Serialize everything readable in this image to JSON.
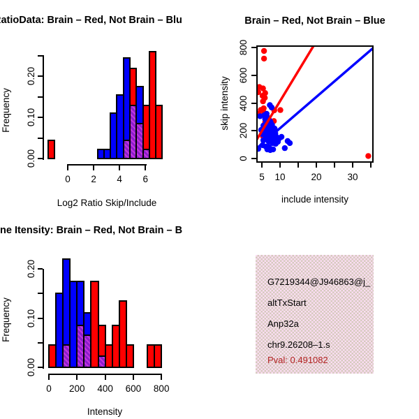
{
  "colors": {
    "red": "#FF0000",
    "blue": "#0000FF",
    "overlap_base": "#8A1ECC",
    "overlap_stripe": "#C433DD",
    "axis_black": "#000000",
    "info_bg_pink": "#FBDDF3",
    "info_bg_dot": "#D6CABE",
    "pval_red": "#B22222"
  },
  "chart_data": [
    {
      "id": "hist_ratio",
      "type": "histogram",
      "title": "RatioData: Brain – Red, Not Brain – Blu",
      "xlabel": "Log2 Ratio Skip/Include",
      "ylabel": "Frequency",
      "xlim": [
        -1.8,
        7.3
      ],
      "ylim": [
        0,
        0.25
      ],
      "x_ticks": [
        {
          "v": 0,
          "l": "0"
        },
        {
          "v": 2,
          "l": "2"
        },
        {
          "v": 4,
          "l": "4"
        },
        {
          "v": 6,
          "l": "6"
        }
      ],
      "y_ticks": [
        {
          "v": 0,
          "l": "0.00"
        },
        {
          "v": 0.05,
          "l": ""
        },
        {
          "v": 0.1,
          "l": "0.10"
        },
        {
          "v": 0.15,
          "l": ""
        },
        {
          "v": 0.2,
          "l": "0.20"
        },
        {
          "v": 0.25,
          "l": ""
        }
      ],
      "series": [
        {
          "name": "not-brain-blue",
          "color": "blue",
          "bars": [
            [
              2.3,
              2.8,
              0.022
            ],
            [
              2.8,
              3.3,
              0.022
            ],
            [
              3.3,
              3.8,
              0.11
            ],
            [
              3.8,
              4.3,
              0.155
            ],
            [
              4.3,
              4.8,
              0.245
            ],
            [
              4.8,
              5.3,
              0.13
            ],
            [
              5.3,
              5.8,
              0.175
            ],
            [
              5.8,
              6.3,
              0.022
            ]
          ]
        },
        {
          "name": "brain-red",
          "color": "red",
          "bars": [
            [
              -1.5,
              -1.0,
              0.045
            ],
            [
              4.3,
              4.8,
              0.045
            ],
            [
              4.8,
              5.3,
              0.22
            ],
            [
              5.3,
              5.8,
              0.085
            ],
            [
              5.8,
              6.3,
              0.13
            ],
            [
              6.3,
              6.8,
              0.26
            ],
            [
              6.8,
              7.3,
              0.13
            ]
          ]
        },
        {
          "name": "overlap-purple-hatch",
          "color": "overlap",
          "bars": [
            [
              4.3,
              4.8,
              0.045
            ],
            [
              4.8,
              5.3,
              0.13
            ],
            [
              5.3,
              5.8,
              0.085
            ],
            [
              5.8,
              6.3,
              0.022
            ]
          ]
        }
      ]
    },
    {
      "id": "scatter_intensity",
      "type": "scatter",
      "title": "Brain – Red, Not Brain – Blue",
      "xlabel": "include intensity",
      "ylabel": "skip intensity",
      "xlim": [
        3.5,
        35.8
      ],
      "ylim": [
        0,
        800
      ],
      "x_ticks": [
        {
          "v": 5,
          "l": "5"
        },
        {
          "v": 10,
          "l": "10"
        },
        {
          "v": 15,
          "l": ""
        },
        {
          "v": 20,
          "l": "20"
        },
        {
          "v": 25,
          "l": ""
        },
        {
          "v": 30,
          "l": "30"
        },
        {
          "v": 35,
          "l": ""
        }
      ],
      "y_ticks": [
        {
          "v": 0,
          "l": "0"
        },
        {
          "v": 200,
          "l": "200"
        },
        {
          "v": 400,
          "l": "400"
        },
        {
          "v": 600,
          "l": "600"
        },
        {
          "v": 800,
          "l": "800"
        }
      ],
      "series": [
        {
          "name": "brain-red-points",
          "color": "red",
          "points": [
            [
              5.6,
              775
            ],
            [
              5.6,
              720
            ],
            [
              4.3,
              515
            ],
            [
              5.3,
              505
            ],
            [
              4.0,
              478
            ],
            [
              5.9,
              472
            ],
            [
              5.2,
              452
            ],
            [
              5.8,
              437
            ],
            [
              5.3,
              412
            ],
            [
              4.7,
              350
            ],
            [
              5.5,
              362
            ],
            [
              4.1,
              322
            ],
            [
              5.7,
              327
            ],
            [
              8.4,
              347
            ],
            [
              10.1,
              349
            ],
            [
              7.0,
              277
            ],
            [
              8.3,
              270
            ],
            [
              5.9,
              262
            ],
            [
              7.5,
              240
            ],
            [
              5.3,
              160
            ],
            [
              6.4,
              302
            ],
            [
              34.3,
              18
            ]
          ]
        },
        {
          "name": "not-brain-blue-points",
          "color": "blue",
          "points": [
            [
              7.2,
              385
            ],
            [
              7.7,
              368
            ],
            [
              6.3,
              322
            ],
            [
              5.7,
              312
            ],
            [
              4.5,
              305
            ],
            [
              6.6,
              292
            ],
            [
              5.9,
              285
            ],
            [
              7.0,
              278
            ],
            [
              7.4,
              262
            ],
            [
              6.1,
              255
            ],
            [
              6.7,
              247
            ],
            [
              7.8,
              242
            ],
            [
              5.4,
              237
            ],
            [
              6.3,
              230
            ],
            [
              7.1,
              226
            ],
            [
              8.0,
              221
            ],
            [
              8.5,
              216
            ],
            [
              6.8,
              211
            ],
            [
              6.0,
              206
            ],
            [
              6.5,
              196
            ],
            [
              7.3,
              191
            ],
            [
              7.9,
              186
            ],
            [
              8.7,
              181
            ],
            [
              6.2,
              176
            ],
            [
              7.0,
              171
            ],
            [
              7.6,
              166
            ],
            [
              8.2,
              161
            ],
            [
              9.0,
              156
            ],
            [
              6.6,
              151
            ],
            [
              7.2,
              146
            ],
            [
              7.9,
              141
            ],
            [
              8.4,
              136
            ],
            [
              9.1,
              131
            ],
            [
              7.5,
              126
            ],
            [
              6.9,
              121
            ],
            [
              8.0,
              111
            ],
            [
              8.8,
              106
            ],
            [
              9.4,
              121
            ],
            [
              5.2,
              96
            ],
            [
              6.1,
              86
            ],
            [
              7.0,
              81
            ],
            [
              12.1,
              126
            ],
            [
              12.7,
              111
            ],
            [
              11.3,
              75
            ],
            [
              4.0,
              70
            ],
            [
              9.8,
              146
            ],
            [
              10.4,
              156
            ],
            [
              6.5,
              66
            ],
            [
              7.3,
              61
            ],
            [
              8.1,
              66
            ],
            [
              5.6,
              191
            ],
            [
              5.9,
              166
            ],
            [
              6.2,
              141
            ],
            [
              5.4,
              131
            ],
            [
              4.8,
              206
            ],
            [
              5.1,
              176
            ]
          ]
        }
      ],
      "fit_lines": [
        {
          "name": "blue-fit-line",
          "color": "blue",
          "p1": [
            3.5,
            72
          ],
          "p2": [
            35.8,
            800
          ]
        },
        {
          "name": "red-fit-line",
          "color": "red",
          "p1": [
            3.5,
            133
          ],
          "p2": [
            19.3,
            815
          ]
        }
      ]
    },
    {
      "id": "hist_intensity",
      "type": "histogram",
      "title": "ne Itensity: Brain – Red, Not Brain – B",
      "xlabel": "Intensity",
      "ylabel": "Frequency",
      "xlim": [
        0,
        820
      ],
      "ylim": [
        0,
        0.2
      ],
      "x_ticks": [
        {
          "v": 0,
          "l": "0"
        },
        {
          "v": 200,
          "l": "200"
        },
        {
          "v": 400,
          "l": "400"
        },
        {
          "v": 600,
          "l": "600"
        },
        {
          "v": 800,
          "l": "800"
        }
      ],
      "y_ticks": [
        {
          "v": 0,
          "l": "0.00"
        },
        {
          "v": 0.05,
          "l": ""
        },
        {
          "v": 0.1,
          "l": "0.10"
        },
        {
          "v": 0.15,
          "l": ""
        },
        {
          "v": 0.2,
          "l": "0.20"
        }
      ],
      "series": [
        {
          "name": "not-brain-blue",
          "color": "blue",
          "bars": [
            [
              50,
              100,
              0.15
            ],
            [
              100,
              150,
              0.22
            ],
            [
              150,
              200,
              0.175
            ],
            [
              200,
              250,
              0.175
            ],
            [
              250,
              300,
              0.11
            ],
            [
              350,
              400,
              0.022
            ]
          ]
        },
        {
          "name": "brain-red",
          "color": "red",
          "bars": [
            [
              0,
              50,
              0.045
            ],
            [
              100,
              150,
              0.045
            ],
            [
              200,
              250,
              0.085
            ],
            [
              250,
              300,
              0.065
            ],
            [
              300,
              350,
              0.175
            ],
            [
              350,
              400,
              0.085
            ],
            [
              400,
              450,
              0.045
            ],
            [
              450,
              500,
              0.085
            ],
            [
              500,
              550,
              0.135
            ],
            [
              550,
              600,
              0.045
            ],
            [
              700,
              750,
              0.045
            ],
            [
              750,
              800,
              0.045
            ]
          ]
        },
        {
          "name": "overlap-purple-hatch",
          "color": "overlap",
          "bars": [
            [
              100,
              150,
              0.045
            ],
            [
              200,
              250,
              0.085
            ],
            [
              250,
              300,
              0.065
            ],
            [
              350,
              400,
              0.022
            ]
          ]
        }
      ]
    }
  ],
  "info_panel": {
    "lines": [
      "G7219344@J946863@j_",
      "altTxStart",
      "Anp32a",
      "chr9.26208–1.s"
    ],
    "pval": "Pval: 0.491082"
  }
}
